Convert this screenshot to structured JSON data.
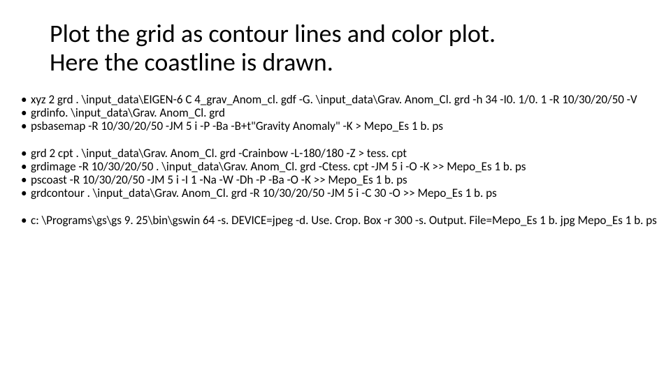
{
  "title_line1": "Plot the grid as contour lines and color plot.",
  "title_line2": "Here the coastline is drawn.",
  "group1": [
    "xyz 2 grd . \\input_data\\EIGEN-6 C 4_grav_Anom_cl. gdf -G. \\input_data\\Grav. Anom_Cl. grd -h 34 -I0. 1/0. 1 -R 10/30/20/50 -V",
    "grdinfo. \\input_data\\Grav. Anom_Cl. grd",
    "psbasemap  -R 10/30/20/50 -JM 5 i  -P -Ba -B+t\"Gravity Anomaly\" -K > Mepo_Es 1 b. ps"
  ],
  "group2": [
    "grd 2 cpt . \\input_data\\Grav. Anom_Cl. grd  -Crainbow -L-180/180 -Z  > tess. cpt",
    "grdimage -R 10/30/20/50 . \\input_data\\Grav. Anom_Cl. grd -Ctess. cpt -JM 5 i -O -K >> Mepo_Es 1 b. ps",
    "pscoast -R 10/30/20/50 -JM 5 i -I 1 -Na -W -Dh -P -Ba -O -K >> Mepo_Es 1 b. ps",
    "grdcontour . \\input_data\\Grav. Anom_Cl. grd -R 10/30/20/50 -JM 5 i -C 30 -O  >> Mepo_Es 1 b. ps"
  ],
  "group3": [
    "c: \\Programs\\gs\\gs 9. 25\\bin\\gswin 64 -s. DEVICE=jpeg -d. Use. Crop. Box -r 300 -s. Output. File=Mepo_Es 1 b. jpg Mepo_Es 1 b. ps"
  ]
}
